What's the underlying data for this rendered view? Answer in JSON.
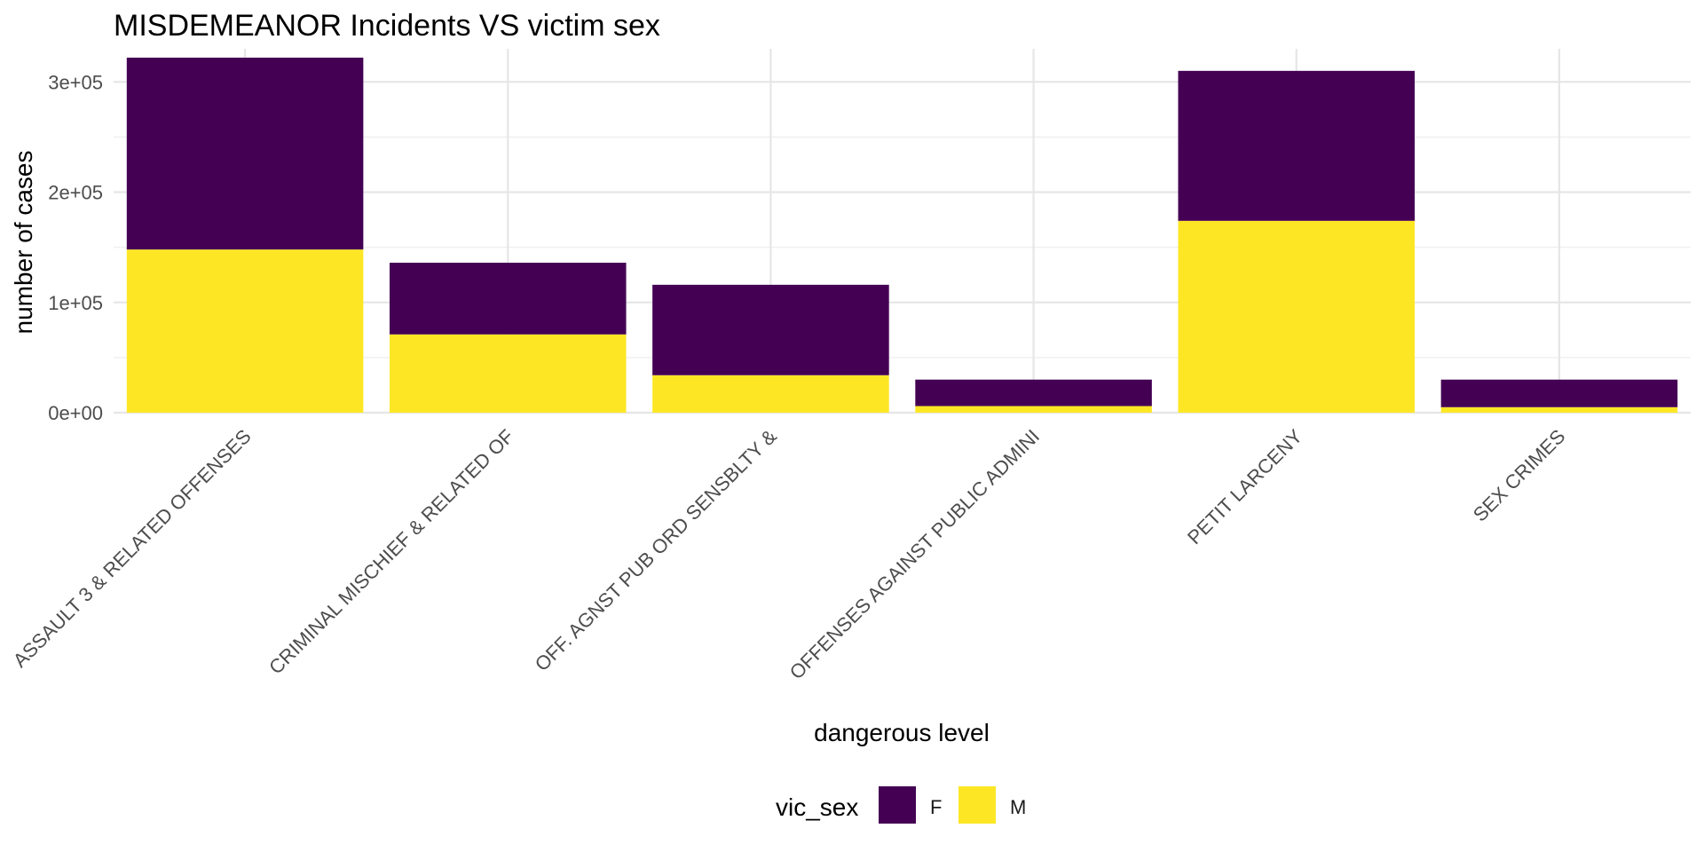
{
  "chart_data": {
    "type": "bar",
    "stacked": true,
    "title": "MISDEMEANOR Incidents VS victim sex",
    "xlabel": "dangerous level",
    "ylabel": "number of cases",
    "ylim": [
      0,
      330000
    ],
    "y_ticks": [
      0,
      100000,
      200000,
      300000
    ],
    "y_tick_labels": [
      "0e+00",
      "1e+05",
      "2e+05",
      "3e+05"
    ],
    "grid": true,
    "categories": [
      "ASSAULT 3 & RELATED OFFENSES",
      "CRIMINAL MISCHIEF & RELATED OF",
      "OFF. AGNST PUB ORD SENSBLTY &",
      "OFFENSES AGAINST PUBLIC ADMINI",
      "PETIT LARCENY",
      "SEX CRIMES"
    ],
    "legend": {
      "title": "vic_sex",
      "position": "bottom"
    },
    "series": [
      {
        "name": "M",
        "color": "#FDE725",
        "values": [
          148000,
          71000,
          34000,
          6000,
          174000,
          5000
        ]
      },
      {
        "name": "F",
        "color": "#440154",
        "values": [
          174000,
          65000,
          82000,
          24000,
          136000,
          25000
        ]
      }
    ]
  }
}
